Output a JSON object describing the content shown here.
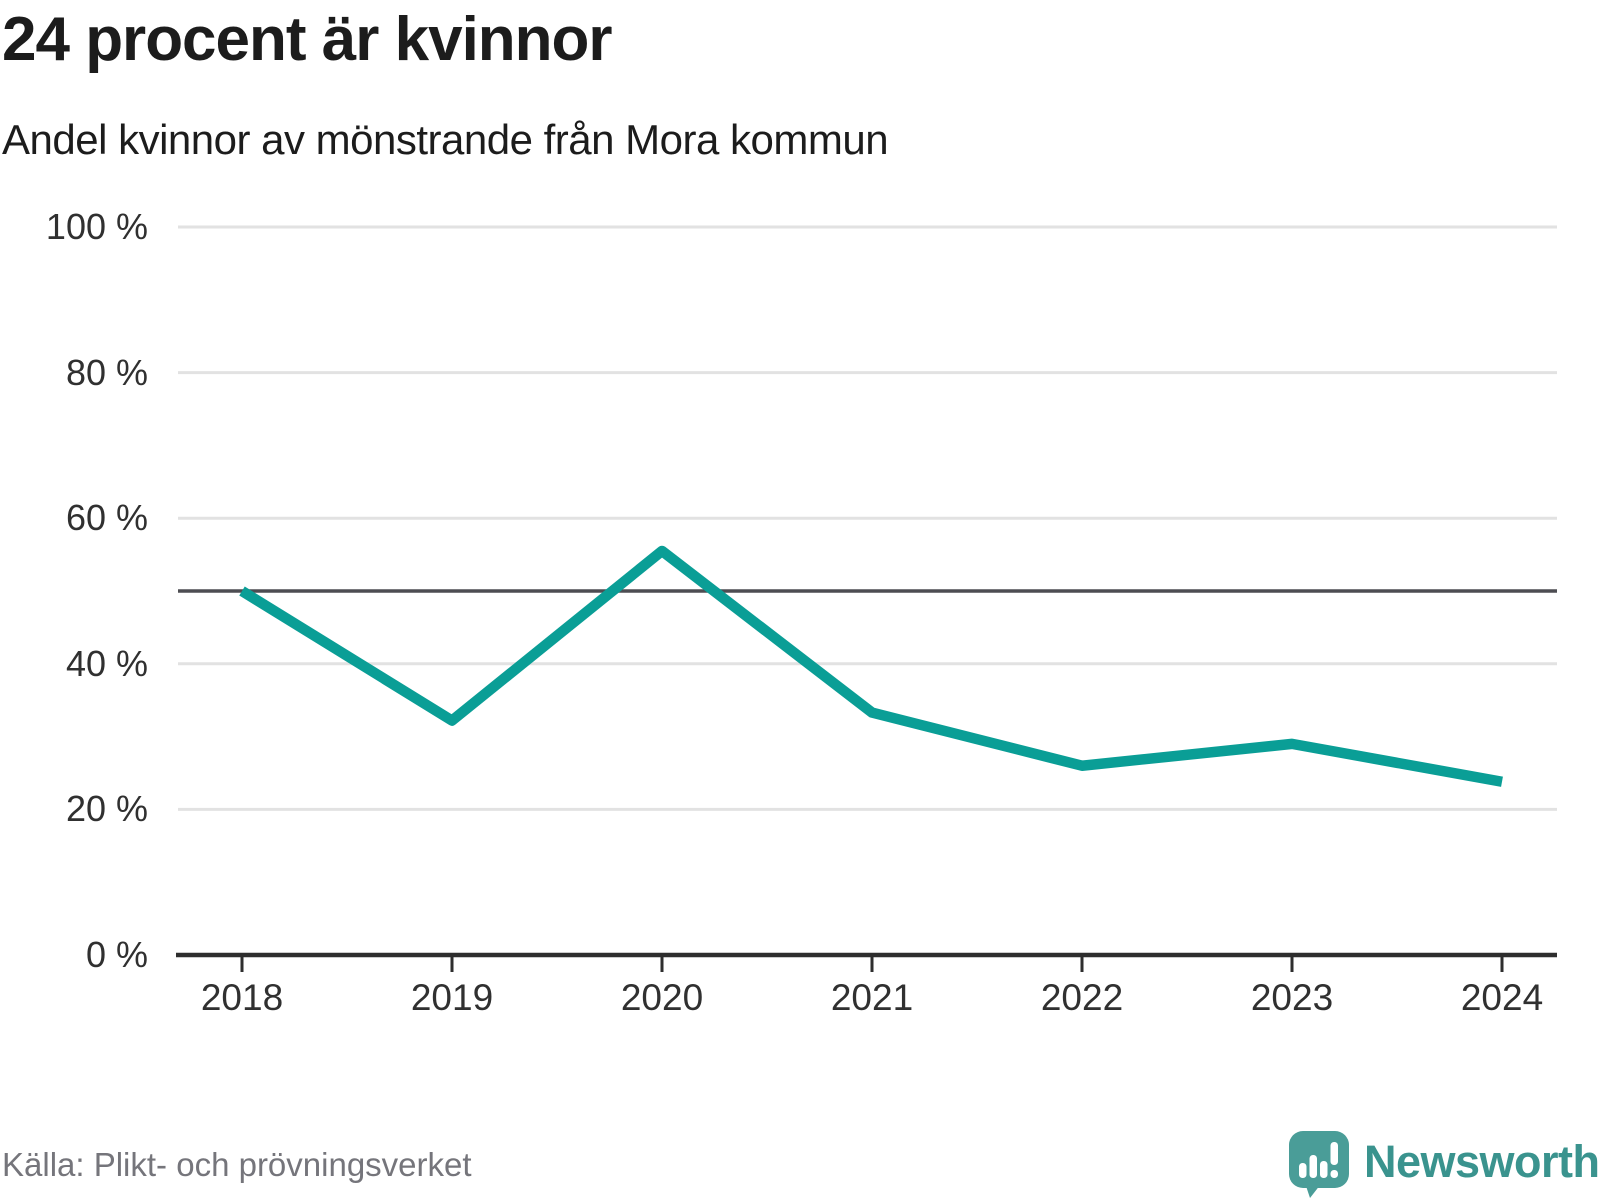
{
  "header": {
    "title": "24 procent är kvinnor",
    "subtitle": "Andel kvinnor av mönstrande från Mora kommun"
  },
  "chart_data": {
    "type": "line",
    "title": "24 procent är kvinnor",
    "subtitle": "Andel kvinnor av mönstrande från Mora kommun",
    "x": [
      2018,
      2019,
      2020,
      2021,
      2022,
      2023,
      2024
    ],
    "xtick_labels": [
      "2018",
      "2019",
      "2020",
      "2021",
      "2022",
      "2023",
      "2024"
    ],
    "series": [
      {
        "name": "Andel kvinnor av mönstrande",
        "values": [
          50.0,
          32.2,
          55.5,
          33.3,
          26.0,
          29.0,
          23.8
        ]
      }
    ],
    "xlabel": "",
    "ylabel": "",
    "ylim": [
      0,
      100
    ],
    "yticks": [
      0,
      20,
      40,
      60,
      80,
      100
    ],
    "ytick_labels": [
      "0 %",
      "20 %",
      "40 %",
      "60 %",
      "80 %",
      "100 %"
    ],
    "reference_line": 50,
    "grid": "horizontal-only",
    "legend": "none",
    "line_color": "#0a9e96",
    "reference_line_color": "#4d4d52",
    "gridline_color": "#e2e2e2",
    "axis_color": "#2e2e2e"
  },
  "footer": {
    "source": "Källa: Plikt- och prövningsverket",
    "brand": "Newsworthy",
    "brand_color": "#3a938e",
    "logo_bubble_color": "#4a9d98"
  }
}
